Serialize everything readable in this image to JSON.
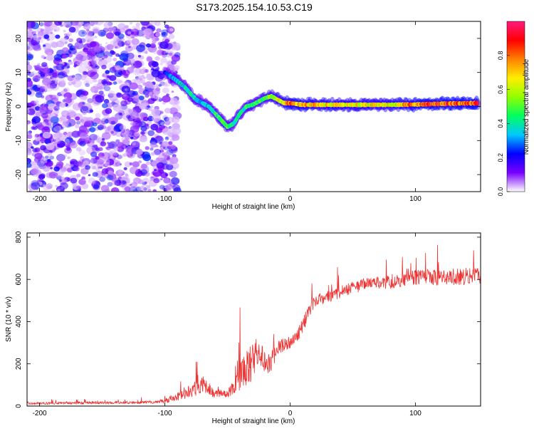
{
  "figure": {
    "title": "S173.2025.154.10.53.C19"
  },
  "chart_data": [
    {
      "type": "heatmap",
      "name": "spectrogram",
      "xlabel": "Height of straight line (km)",
      "ylabel": "Frequency (Hz)",
      "xlim": [
        -210,
        152
      ],
      "ylim": [
        -25,
        25
      ],
      "xticks": [
        -200,
        -100,
        0,
        100
      ],
      "yticks": [
        -20,
        -10,
        0,
        10,
        20
      ],
      "grid": false,
      "colorbar": {
        "label": "Normalized spectral amplitude",
        "range": [
          0,
          1
        ],
        "ticks": [
          0.0,
          0.2,
          0.4,
          0.6,
          0.8
        ],
        "tick_labels": [
          "0.0",
          "0.2",
          "0.4",
          "0.6",
          "0.8"
        ],
        "colormap": [
          "#ffffff",
          "#7a00ff",
          "#0000ff",
          "#00c8ff",
          "#00ff60",
          "#90ff00",
          "#ffee00",
          "#ff8000",
          "#ff0000",
          "#ff1a80"
        ]
      },
      "ridge": {
        "x": [
          -100,
          -92,
          -85,
          -80,
          -75,
          -70,
          -65,
          -60,
          -55,
          -50,
          -45,
          -40,
          -35,
          -30,
          -25,
          -20,
          -15,
          -10,
          -5,
          0,
          10,
          20,
          40,
          60,
          80,
          100,
          120,
          150
        ],
        "y": [
          10,
          8,
          6,
          4,
          2,
          1,
          0,
          -2,
          -4,
          -6,
          -5,
          -2,
          0,
          0.5,
          1.5,
          2.5,
          3,
          2,
          1,
          1,
          0.5,
          0.5,
          0.5,
          0.5,
          0.5,
          0.6,
          0.8,
          1
        ],
        "amplitude": [
          0.25,
          0.35,
          0.4,
          0.45,
          0.4,
          0.35,
          0.4,
          0.45,
          0.5,
          0.55,
          0.45,
          0.4,
          0.45,
          0.5,
          0.5,
          0.55,
          0.6,
          0.65,
          0.7,
          0.85,
          0.8,
          0.75,
          0.7,
          0.7,
          0.7,
          0.85,
          0.9,
          0.9
        ]
      },
      "noise_region_x": [
        -210,
        -90
      ]
    },
    {
      "type": "line",
      "name": "snr",
      "xlabel": "Height of straight line (km)",
      "ylabel": "SNR (10 * v/v)",
      "xlim": [
        -210,
        152
      ],
      "ylim": [
        0,
        820
      ],
      "xticks": [
        -200,
        -100,
        0,
        100
      ],
      "yticks": [
        0,
        200,
        400,
        600,
        800
      ],
      "grid": false,
      "color": "#ee3333",
      "envelope": {
        "x": [
          -210,
          -110,
          -100,
          -90,
          -80,
          -70,
          -60,
          -50,
          -45,
          -40,
          -35,
          -30,
          -25,
          -20,
          -15,
          -10,
          -5,
          0,
          5,
          10,
          15,
          20,
          30,
          40,
          50,
          60,
          80,
          100,
          120,
          150
        ],
        "baseline": [
          12,
          18,
          25,
          40,
          70,
          100,
          60,
          60,
          90,
          130,
          170,
          220,
          270,
          200,
          210,
          280,
          290,
          300,
          320,
          380,
          450,
          500,
          520,
          540,
          560,
          580,
          590,
          610,
          610,
          620
        ],
        "spread": [
          10,
          12,
          20,
          40,
          60,
          90,
          40,
          40,
          80,
          150,
          180,
          200,
          120,
          100,
          100,
          80,
          60,
          60,
          60,
          80,
          70,
          60,
          60,
          60,
          60,
          60,
          70,
          70,
          80,
          90
        ]
      }
    }
  ]
}
